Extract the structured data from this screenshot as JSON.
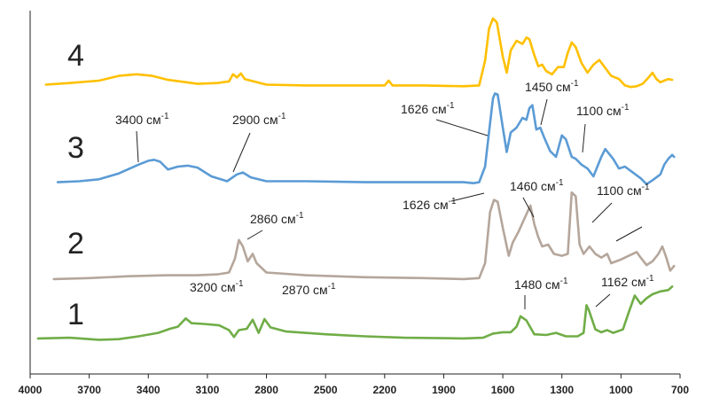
{
  "chart_data": {
    "type": "line",
    "title": "",
    "xlabel": "",
    "ylabel": "",
    "xlim": [
      4000,
      700
    ],
    "x_reversed": true,
    "grid": false,
    "legend": "none",
    "x_ticks": [
      "4000",
      "3700",
      "3400",
      "3100",
      "2800",
      "2500",
      "2200",
      "1900",
      "1600",
      "1300",
      "1000",
      "700"
    ],
    "series": [
      {
        "name": "1",
        "color": "#70ad47",
        "points": [
          [
            3960,
            0.04
          ],
          [
            3800,
            0.05
          ],
          [
            3650,
            0.02
          ],
          [
            3550,
            0.03
          ],
          [
            3450,
            0.07
          ],
          [
            3350,
            0.12
          ],
          [
            3290,
            0.18
          ],
          [
            3250,
            0.21
          ],
          [
            3210,
            0.33
          ],
          [
            3180,
            0.26
          ],
          [
            3120,
            0.25
          ],
          [
            3040,
            0.23
          ],
          [
            2990,
            0.16
          ],
          [
            2965,
            0.06
          ],
          [
            2940,
            0.16
          ],
          [
            2900,
            0.18
          ],
          [
            2870,
            0.31
          ],
          [
            2840,
            0.12
          ],
          [
            2810,
            0.32
          ],
          [
            2780,
            0.2
          ],
          [
            2700,
            0.14
          ],
          [
            2500,
            0.1
          ],
          [
            2300,
            0.07
          ],
          [
            2100,
            0.05
          ],
          [
            1800,
            0.04
          ],
          [
            1700,
            0.05
          ],
          [
            1650,
            0.11
          ],
          [
            1600,
            0.13
          ],
          [
            1560,
            0.13
          ],
          [
            1530,
            0.21
          ],
          [
            1510,
            0.36
          ],
          [
            1480,
            0.3
          ],
          [
            1440,
            0.1
          ],
          [
            1380,
            0.09
          ],
          [
            1330,
            0.12
          ],
          [
            1280,
            0.07
          ],
          [
            1220,
            0.07
          ],
          [
            1190,
            0.12
          ],
          [
            1175,
            0.52
          ],
          [
            1162,
            0.44
          ],
          [
            1130,
            0.17
          ],
          [
            1100,
            0.13
          ],
          [
            1070,
            0.16
          ],
          [
            1040,
            0.12
          ],
          [
            990,
            0.17
          ],
          [
            960,
            0.42
          ],
          [
            930,
            0.66
          ],
          [
            900,
            0.54
          ],
          [
            870,
            0.62
          ],
          [
            840,
            0.68
          ],
          [
            800,
            0.72
          ],
          [
            760,
            0.74
          ],
          [
            740,
            0.79
          ]
        ]
      },
      {
        "name": "2",
        "color": "#b5a69b",
        "points": [
          [
            3880,
            0.03
          ],
          [
            3700,
            0.04
          ],
          [
            3500,
            0.06
          ],
          [
            3300,
            0.07
          ],
          [
            3150,
            0.07
          ],
          [
            3050,
            0.08
          ],
          [
            2990,
            0.1
          ],
          [
            2960,
            0.25
          ],
          [
            2940,
            0.45
          ],
          [
            2920,
            0.38
          ],
          [
            2895,
            0.22
          ],
          [
            2870,
            0.3
          ],
          [
            2850,
            0.2
          ],
          [
            2800,
            0.1
          ],
          [
            2600,
            0.07
          ],
          [
            2300,
            0.05
          ],
          [
            2000,
            0.04
          ],
          [
            1800,
            0.03
          ],
          [
            1720,
            0.04
          ],
          [
            1690,
            0.2
          ],
          [
            1665,
            0.75
          ],
          [
            1645,
            0.88
          ],
          [
            1626,
            0.86
          ],
          [
            1600,
            0.58
          ],
          [
            1570,
            0.28
          ],
          [
            1550,
            0.42
          ],
          [
            1520,
            0.54
          ],
          [
            1490,
            0.68
          ],
          [
            1460,
            0.82
          ],
          [
            1440,
            0.62
          ],
          [
            1420,
            0.48
          ],
          [
            1400,
            0.38
          ],
          [
            1370,
            0.4
          ],
          [
            1340,
            0.3
          ],
          [
            1300,
            0.28
          ],
          [
            1270,
            0.3
          ],
          [
            1250,
            0.96
          ],
          [
            1230,
            0.92
          ],
          [
            1210,
            0.4
          ],
          [
            1190,
            0.3
          ],
          [
            1160,
            0.38
          ],
          [
            1130,
            0.3
          ],
          [
            1100,
            0.26
          ],
          [
            1070,
            0.3
          ],
          [
            1050,
            0.2
          ],
          [
            1000,
            0.24
          ],
          [
            960,
            0.28
          ],
          [
            920,
            0.32
          ],
          [
            900,
            0.26
          ],
          [
            870,
            0.18
          ],
          [
            840,
            0.22
          ],
          [
            810,
            0.3
          ],
          [
            790,
            0.38
          ],
          [
            770,
            0.26
          ],
          [
            750,
            0.12
          ],
          [
            730,
            0.17
          ]
        ]
      },
      {
        "name": "3",
        "color": "#5b9bd5",
        "points": [
          [
            3860,
            0.04
          ],
          [
            3750,
            0.05
          ],
          [
            3650,
            0.07
          ],
          [
            3550,
            0.13
          ],
          [
            3450,
            0.22
          ],
          [
            3400,
            0.26
          ],
          [
            3370,
            0.27
          ],
          [
            3340,
            0.25
          ],
          [
            3300,
            0.17
          ],
          [
            3250,
            0.2
          ],
          [
            3200,
            0.21
          ],
          [
            3150,
            0.19
          ],
          [
            3080,
            0.1
          ],
          [
            3000,
            0.05
          ],
          [
            2950,
            0.12
          ],
          [
            2920,
            0.14
          ],
          [
            2880,
            0.09
          ],
          [
            2800,
            0.05
          ],
          [
            2600,
            0.05
          ],
          [
            2300,
            0.04
          ],
          [
            2000,
            0.04
          ],
          [
            1800,
            0.04
          ],
          [
            1750,
            0.03
          ],
          [
            1720,
            0.04
          ],
          [
            1690,
            0.2
          ],
          [
            1670,
            0.55
          ],
          [
            1650,
            0.9
          ],
          [
            1640,
            0.95
          ],
          [
            1626,
            0.94
          ],
          [
            1600,
            0.6
          ],
          [
            1580,
            0.35
          ],
          [
            1560,
            0.55
          ],
          [
            1530,
            0.6
          ],
          [
            1500,
            0.7
          ],
          [
            1480,
            0.68
          ],
          [
            1465,
            0.8
          ],
          [
            1450,
            0.83
          ],
          [
            1430,
            0.58
          ],
          [
            1410,
            0.6
          ],
          [
            1390,
            0.5
          ],
          [
            1360,
            0.36
          ],
          [
            1330,
            0.3
          ],
          [
            1300,
            0.52
          ],
          [
            1280,
            0.48
          ],
          [
            1250,
            0.3
          ],
          [
            1230,
            0.28
          ],
          [
            1200,
            0.22
          ],
          [
            1170,
            0.18
          ],
          [
            1140,
            0.1
          ],
          [
            1100,
            0.3
          ],
          [
            1080,
            0.38
          ],
          [
            1040,
            0.28
          ],
          [
            1010,
            0.18
          ],
          [
            980,
            0.2
          ],
          [
            940,
            0.14
          ],
          [
            900,
            0.08
          ],
          [
            870,
            0.02
          ],
          [
            840,
            0.06
          ],
          [
            800,
            0.12
          ],
          [
            780,
            0.22
          ],
          [
            760,
            0.28
          ],
          [
            740,
            0.32
          ],
          [
            730,
            0.3
          ]
        ]
      },
      {
        "name": "4",
        "color": "#ffc000",
        "points": [
          [
            3920,
            0.05
          ],
          [
            3800,
            0.07
          ],
          [
            3650,
            0.1
          ],
          [
            3550,
            0.16
          ],
          [
            3460,
            0.18
          ],
          [
            3380,
            0.16
          ],
          [
            3300,
            0.11
          ],
          [
            3150,
            0.06
          ],
          [
            3050,
            0.07
          ],
          [
            2990,
            0.09
          ],
          [
            2970,
            0.18
          ],
          [
            2950,
            0.14
          ],
          [
            2930,
            0.19
          ],
          [
            2910,
            0.12
          ],
          [
            2880,
            0.1
          ],
          [
            2800,
            0.05
          ],
          [
            2600,
            0.04
          ],
          [
            2400,
            0.04
          ],
          [
            2200,
            0.04
          ],
          [
            2180,
            0.1
          ],
          [
            2160,
            0.04
          ],
          [
            2000,
            0.04
          ],
          [
            1800,
            0.03
          ],
          [
            1720,
            0.04
          ],
          [
            1690,
            0.35
          ],
          [
            1670,
            0.75
          ],
          [
            1650,
            0.88
          ],
          [
            1630,
            0.83
          ],
          [
            1600,
            0.4
          ],
          [
            1580,
            0.2
          ],
          [
            1560,
            0.48
          ],
          [
            1530,
            0.6
          ],
          [
            1500,
            0.56
          ],
          [
            1480,
            0.64
          ],
          [
            1465,
            0.62
          ],
          [
            1440,
            0.42
          ],
          [
            1420,
            0.28
          ],
          [
            1400,
            0.3
          ],
          [
            1380,
            0.22
          ],
          [
            1350,
            0.18
          ],
          [
            1320,
            0.27
          ],
          [
            1290,
            0.27
          ],
          [
            1270,
            0.45
          ],
          [
            1250,
            0.58
          ],
          [
            1230,
            0.52
          ],
          [
            1200,
            0.32
          ],
          [
            1170,
            0.2
          ],
          [
            1140,
            0.3
          ],
          [
            1110,
            0.36
          ],
          [
            1080,
            0.26
          ],
          [
            1050,
            0.16
          ],
          [
            1010,
            0.12
          ],
          [
            980,
            0.04
          ],
          [
            950,
            0.02
          ],
          [
            920,
            0.03
          ],
          [
            890,
            0.06
          ],
          [
            860,
            0.14
          ],
          [
            840,
            0.2
          ],
          [
            820,
            0.12
          ],
          [
            800,
            0.08
          ],
          [
            780,
            0.1
          ],
          [
            760,
            0.12
          ],
          [
            740,
            0.11
          ]
        ]
      }
    ],
    "annotations": [
      {
        "series": "4",
        "text": "4"
      },
      {
        "series": "3",
        "text": "3"
      },
      {
        "series": "2",
        "text": "2"
      },
      {
        "series": "1",
        "text": "1"
      },
      {
        "text": "3400 см",
        "sup": "-1"
      },
      {
        "text": "2900 см",
        "sup": "-1"
      },
      {
        "text": "1626 см",
        "sup": "-1"
      },
      {
        "text": "1450 см",
        "sup": "-1"
      },
      {
        "text": "1100 см",
        "sup": "-1"
      },
      {
        "text": "1626 см",
        "sup": "-1"
      },
      {
        "text": "1460 см",
        "sup": "-1"
      },
      {
        "text": "1100 см",
        "sup": "-1"
      },
      {
        "text": "2860 см",
        "sup": "-1"
      },
      {
        "text": "3200 см",
        "sup": "-1"
      },
      {
        "text": "2870 см",
        "sup": "-1"
      },
      {
        "text": "1480 см",
        "sup": "-1"
      },
      {
        "text": "1162 см",
        "sup": "-1"
      }
    ]
  }
}
